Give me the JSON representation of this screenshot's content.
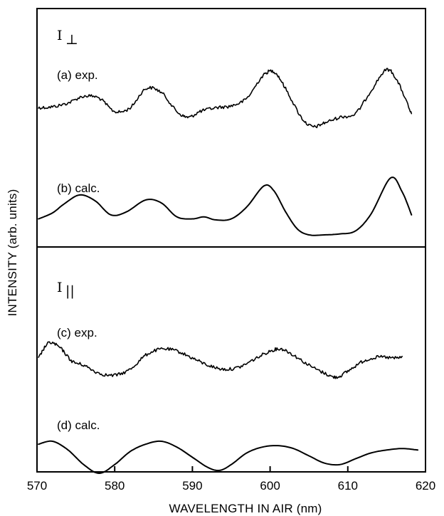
{
  "chart_data": {
    "type": "line",
    "xlabel": "WAVELENGTH IN AIR (nm)",
    "ylabel": "INTENSITY (arb. units)",
    "xlim": [
      570,
      620
    ],
    "x_ticks": [
      "570",
      "580",
      "590",
      "600",
      "610",
      "620"
    ],
    "grid": false,
    "legend": "none",
    "panels": [
      {
        "panel_label": "I",
        "panel_subscript": "⊥",
        "series": [
          {
            "name": "(a) exp.",
            "noisy": true,
            "x": [
              570.2,
              572,
              574,
              576,
              578,
              580,
              582,
              584,
              586,
              588,
              589.5,
              591,
              593,
              595,
              597,
              599,
              600.5,
              602,
              604,
              605.5,
              607,
              609,
              611,
              613,
              615,
              616.5,
              618.2
            ],
            "y": [
              0.62,
              0.63,
              0.67,
              0.74,
              0.72,
              0.58,
              0.62,
              0.82,
              0.78,
              0.58,
              0.52,
              0.58,
              0.62,
              0.64,
              0.72,
              0.95,
              1.0,
              0.82,
              0.52,
              0.42,
              0.46,
              0.52,
              0.56,
              0.8,
              1.02,
              0.88,
              0.55
            ]
          },
          {
            "name": "(b) calc.",
            "noisy": false,
            "x": [
              570.2,
              572,
              573.5,
              575.5,
              577.5,
              579.5,
              581.5,
              584,
              586,
              588,
              590,
              591.5,
              593,
              595,
              597,
              599.2,
              600.5,
              602,
              603.5,
              605,
              607,
              609,
              611,
              613,
              615.5,
              617,
              618.2
            ],
            "y": [
              0.0,
              0.06,
              0.15,
              0.24,
              0.18,
              0.04,
              0.07,
              0.19,
              0.16,
              0.02,
              0.0,
              0.02,
              -0.01,
              0.0,
              0.12,
              0.33,
              0.28,
              0.07,
              -0.1,
              -0.16,
              -0.16,
              -0.15,
              -0.12,
              0.05,
              0.41,
              0.27,
              0.04
            ]
          }
        ]
      },
      {
        "panel_label": "I",
        "panel_subscript": "||",
        "series": [
          {
            "name": "(c) exp.",
            "noisy": true,
            "x": [
              570.2,
              571.5,
              573,
              574.5,
              576,
              578,
              580,
              582,
              584,
              586,
              588,
              590,
              592,
              594,
              596,
              598,
              600,
              601.5,
              603,
              605,
              607,
              608.5,
              610,
              612,
              614,
              616,
              617
            ],
            "y": [
              0.55,
              0.7,
              0.65,
              0.52,
              0.48,
              0.4,
              0.38,
              0.44,
              0.58,
              0.64,
              0.62,
              0.55,
              0.48,
              0.44,
              0.46,
              0.54,
              0.62,
              0.64,
              0.58,
              0.48,
              0.4,
              0.36,
              0.42,
              0.52,
              0.56,
              0.55,
              0.56
            ]
          },
          {
            "name": "(d) calc.",
            "noisy": false,
            "x": [
              570.2,
              572,
              574,
              576,
              578,
              580,
              582,
              584,
              586,
              588,
              590,
              592,
              593.5,
              595,
              597,
              599,
              601,
              603,
              605,
              607,
              609,
              611,
              613,
              615,
              617,
              619
            ],
            "y": [
              0.18,
              0.22,
              0.1,
              -0.1,
              -0.22,
              -0.1,
              0.08,
              0.18,
              0.22,
              0.14,
              0.0,
              -0.14,
              -0.18,
              -0.1,
              0.06,
              0.14,
              0.16,
              0.12,
              0.02,
              -0.08,
              -0.1,
              -0.02,
              0.06,
              0.1,
              0.12,
              0.1
            ]
          }
        ]
      }
    ]
  }
}
